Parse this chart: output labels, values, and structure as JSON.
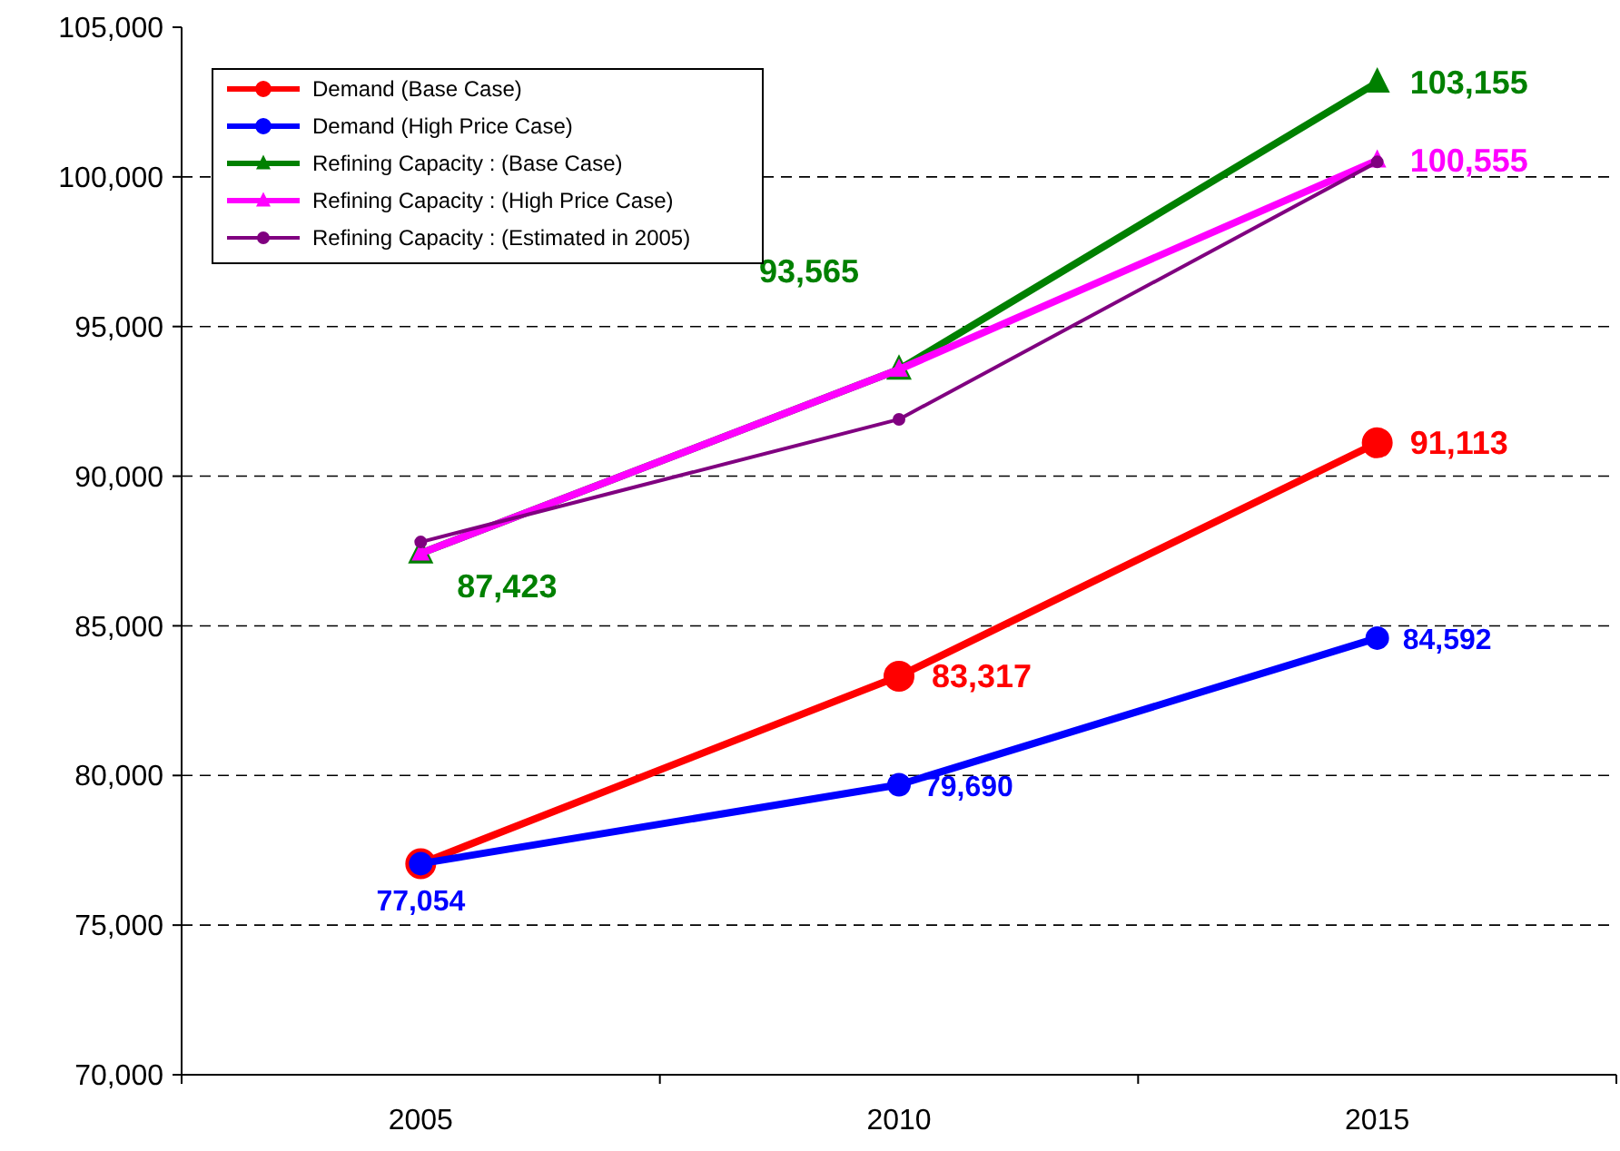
{
  "chart_data": {
    "type": "line",
    "categories": [
      "2005",
      "2010",
      "2015"
    ],
    "ylim": [
      70000,
      105000
    ],
    "yticks": [
      {
        "value": 70000,
        "label": "70,000"
      },
      {
        "value": 75000,
        "label": "75,000"
      },
      {
        "value": 80000,
        "label": "80,000"
      },
      {
        "value": 85000,
        "label": "85,000"
      },
      {
        "value": 90000,
        "label": "90,000"
      },
      {
        "value": 95000,
        "label": "95,000"
      },
      {
        "value": 100000,
        "label": "100,000"
      },
      {
        "value": 105000,
        "label": "105,000"
      }
    ],
    "grid": "y",
    "legend": "top left",
    "line_style": "solid",
    "series": [
      {
        "name": "Demand (Base Case)",
        "color": "#ff0000",
        "marker": "circle",
        "values": [
          77054,
          83317,
          91113
        ],
        "value_labels": [
          null,
          "83,317",
          "91,113"
        ]
      },
      {
        "name": "Demand (High Price Case)",
        "color": "#0000ff",
        "marker": "circle",
        "values": [
          77054,
          79690,
          84592
        ],
        "value_labels": [
          "77,054",
          "79,690",
          "84,592"
        ]
      },
      {
        "name": "Refining Capacity : (Base Case)",
        "color": "#008000",
        "marker": "triangle",
        "values": [
          87423,
          93565,
          103155
        ],
        "value_labels": [
          "87,423",
          "93,565",
          "103,155"
        ]
      },
      {
        "name": "Refining Capacity : (High Price Case)",
        "color": "#ff00ff",
        "marker": "triangle",
        "values": [
          87423,
          93565,
          100555
        ],
        "value_labels": [
          null,
          null,
          "100,555"
        ]
      },
      {
        "name": "Refining Capacity : (Estimated in 2005)",
        "color": "#800080",
        "marker": "circle",
        "values": [
          87800,
          91900,
          100500
        ]
      }
    ]
  }
}
